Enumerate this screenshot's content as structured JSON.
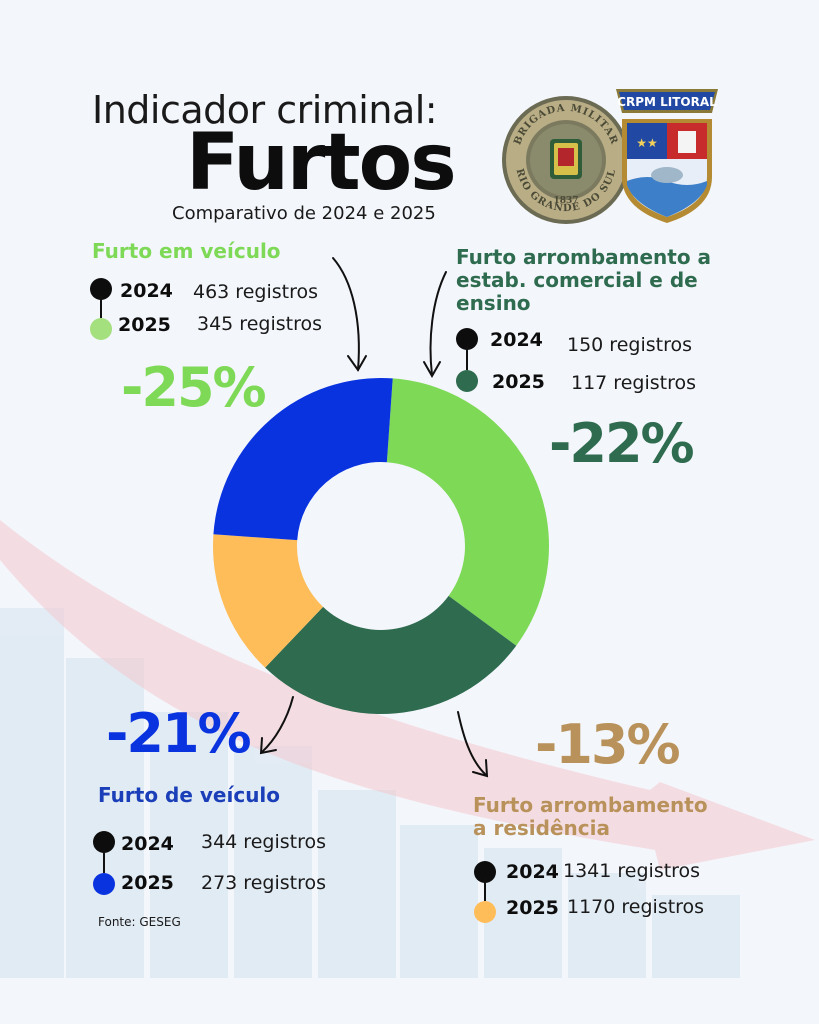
{
  "header": {
    "title_small": "Indicador criminal:",
    "title_main": "Furtos",
    "subtitle": "Comparativo de 2024 e 2025"
  },
  "logos": {
    "brigada": {
      "text_top": "BRIGADA MILITAR",
      "text_bottom": "RIO GRANDE DO SUL",
      "year": "1837"
    },
    "crpm": {
      "text": "CRPM LITORAL"
    }
  },
  "colors": {
    "veiculo_light": "#7ed957",
    "comercial": "#2e6b4f",
    "residencia": "#ffbd59",
    "veiculo_blue": "#0a33e0",
    "residencia_title": "#b8925a",
    "background": "#f3f6fb"
  },
  "categories": {
    "furto_em_veiculo": {
      "title": "Furto em veículo",
      "pct": "-25%",
      "y2024": "2024",
      "r2024": "463 registros",
      "y2025": "2025",
      "r2025": "345 registros"
    },
    "comercial": {
      "title_lines": [
        "Furto arrombamento a",
        "estab. comercial e de",
        "ensino"
      ],
      "pct": "-22%",
      "y2024": "2024",
      "r2024": "150 registros",
      "y2025": "2025",
      "r2025": "117 registros"
    },
    "furto_de_veiculo": {
      "title": "Furto de veículo",
      "pct": "-21%",
      "y2024": "2024",
      "r2024": "344 registros",
      "y2025": "2025",
      "r2025": "273 registros"
    },
    "residencia": {
      "title_lines": [
        "Furto arrombamento",
        "a residência"
      ],
      "pct": "-13%",
      "y2024": "2024",
      "r2024": "1341 registros",
      "y2025": "2025",
      "r2025": "1170 registros"
    }
  },
  "footer": {
    "fonte": "Fonte: GESEG"
  },
  "chart_data": {
    "type": "pie",
    "categories": [
      "Furto em veículo",
      "Furto arrombamento a estab. comercial e de ensino",
      "Furto arrombamento a residência",
      "Furto de veículo"
    ],
    "series": [
      {
        "values": [
          34,
          27,
          14,
          25
        ]
      }
    ],
    "colors": [
      "#7ed957",
      "#2e6b4f",
      "#ffbd59",
      "#0a33e0"
    ]
  }
}
